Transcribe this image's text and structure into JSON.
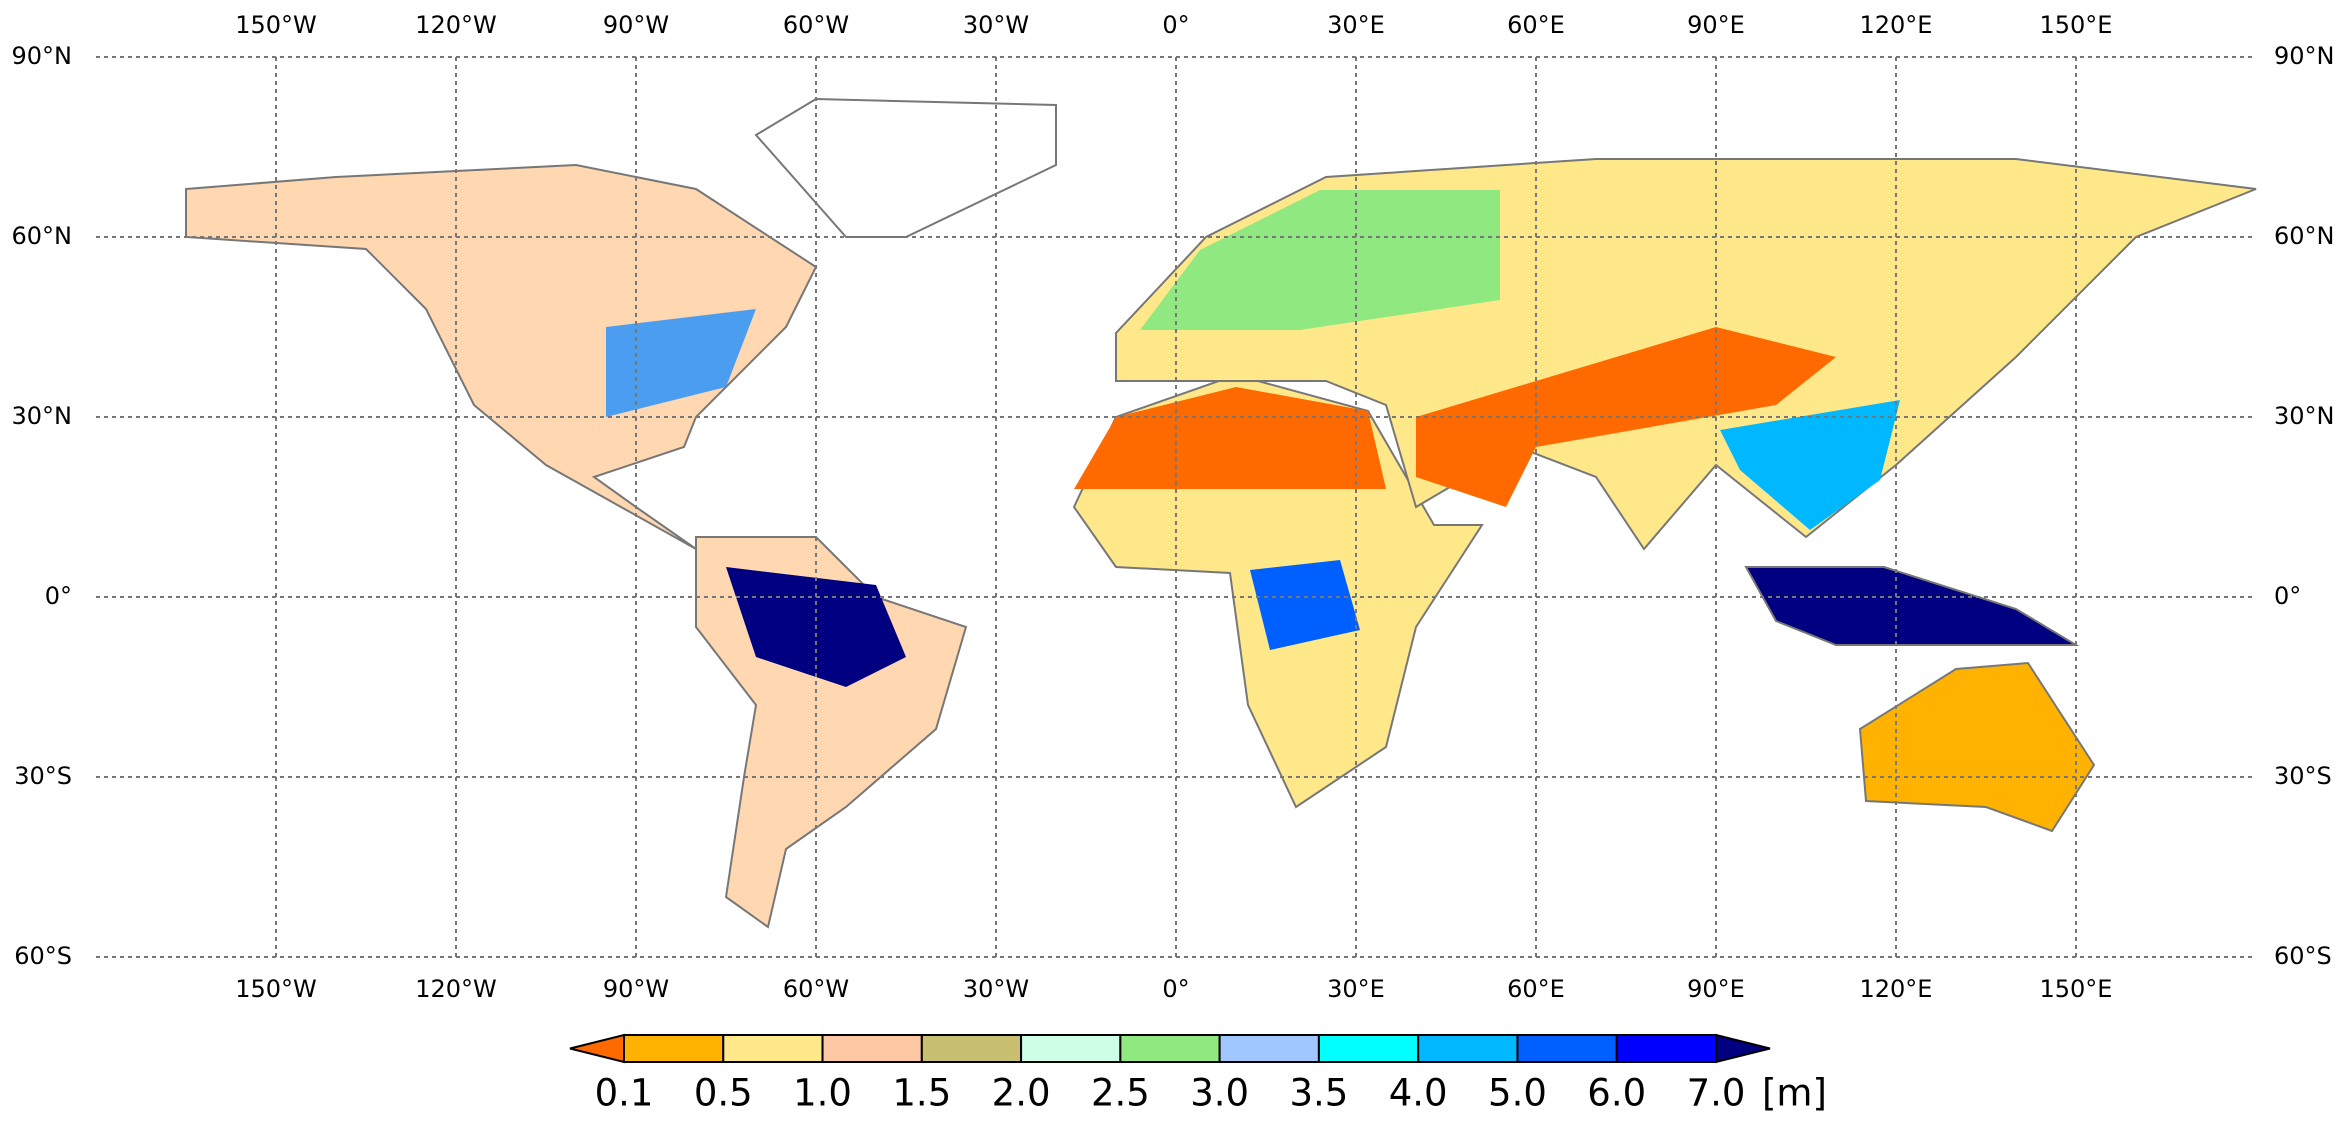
{
  "map": {
    "xlim": [
      -180,
      180
    ],
    "ylim": [
      -60,
      90
    ],
    "grid": true,
    "xticks": [
      {
        "value": -150,
        "label": "150°W"
      },
      {
        "value": -120,
        "label": "120°W"
      },
      {
        "value": -90,
        "label": "90°W"
      },
      {
        "value": -60,
        "label": "60°W"
      },
      {
        "value": -30,
        "label": "30°W"
      },
      {
        "value": 0,
        "label": "0°"
      },
      {
        "value": 30,
        "label": "30°E"
      },
      {
        "value": 60,
        "label": "60°E"
      },
      {
        "value": 90,
        "label": "90°E"
      },
      {
        "value": 120,
        "label": "120°E"
      },
      {
        "value": 150,
        "label": "150°E"
      }
    ],
    "yticks": [
      {
        "value": 90,
        "label": "90°N"
      },
      {
        "value": 60,
        "label": "60°N"
      },
      {
        "value": 30,
        "label": "30°N"
      },
      {
        "value": 0,
        "label": "0°"
      },
      {
        "value": -30,
        "label": "30°S"
      },
      {
        "value": -60,
        "label": "60°S"
      }
    ],
    "colorbar": {
      "bounds": [
        0.1,
        0.5,
        {
          "value": 1,
          "label": "1.0"
        },
        1.5,
        {
          "value": 2,
          "label": "2.0"
        },
        2.5,
        {
          "value": 3,
          "label": "3.0"
        },
        3.5,
        {
          "value": 4,
          "label": "4.0"
        },
        {
          "value": 5,
          "label": "5.0"
        },
        {
          "value": 6,
          "label": "6.0"
        },
        {
          "value": 7,
          "label": "7.0"
        }
      ],
      "colors": [
        "#ffb300",
        "#ffe88a",
        "#ffc8a5",
        "#c8c070",
        "#ccffe6",
        "#90e880",
        "#a0c8ff",
        "#00ffff",
        "#00b8ff",
        "#0060ff",
        "#0000ff"
      ],
      "under_color": "#ff6a00",
      "over_color": "#000080",
      "unit": "[m]"
    }
  }
}
